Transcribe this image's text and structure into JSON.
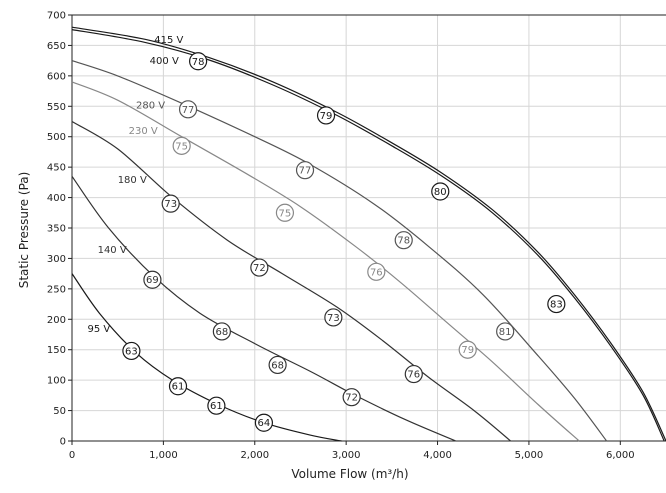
{
  "chart_data": {
    "type": "line",
    "title": "",
    "xlabel": "Volume Flow (m³/h)",
    "ylabel": "Static Pressure (Pa)",
    "xlim": [
      0,
      6500
    ],
    "ylim": [
      0,
      700
    ],
    "grid": true,
    "x_ticks": [
      "0",
      "1,000",
      "2,000",
      "3,000",
      "4,000",
      "5,000",
      "6,000"
    ],
    "y_ticks": [
      "0",
      "50",
      "100",
      "150",
      "200",
      "250",
      "300",
      "350",
      "400",
      "450",
      "500",
      "550",
      "600",
      "650",
      "700"
    ],
    "series": [
      {
        "name": "415 V",
        "color": "#1a1a1a",
        "x": [
          0,
          800,
          1500,
          2200,
          2900,
          3500,
          4050,
          4600,
          5100,
          5500,
          5900,
          6250,
          6500
        ],
        "y": [
          680,
          660,
          630,
          590,
          540,
          490,
          440,
          380,
          310,
          240,
          160,
          80,
          0
        ]
      },
      {
        "name": "400 V",
        "color": "#1a1a1a",
        "x": [
          0,
          800,
          1500,
          2200,
          2900,
          3500,
          4050,
          4600,
          5100,
          5500,
          5900,
          6250,
          6480
        ],
        "y": [
          676,
          655,
          626,
          585,
          535,
          485,
          435,
          375,
          305,
          235,
          155,
          75,
          0
        ]
      },
      {
        "name": "280 V",
        "color": "#555555",
        "x": [
          0,
          500,
          1200,
          2000,
          2600,
          3300,
          3900,
          4500,
          5100,
          5500,
          5850
        ],
        "y": [
          625,
          600,
          555,
          500,
          455,
          390,
          320,
          240,
          140,
          70,
          0
        ]
      },
      {
        "name": "230 V",
        "color": "#888888",
        "x": [
          0,
          500,
          1200,
          1900,
          2500,
          3100,
          3600,
          4100,
          4600,
          5100,
          5550
        ],
        "y": [
          590,
          560,
          500,
          440,
          385,
          320,
          260,
          195,
          130,
          60,
          0
        ]
      },
      {
        "name": "180 V",
        "color": "#333333",
        "x": [
          0,
          500,
          1100,
          1700,
          2300,
          2900,
          3400,
          3900,
          4400,
          4800
        ],
        "y": [
          525,
          480,
          400,
          330,
          275,
          220,
          165,
          105,
          50,
          0
        ]
      },
      {
        "name": "140 V",
        "color": "#333333",
        "x": [
          0,
          400,
          900,
          1400,
          2000,
          2600,
          3100,
          3650,
          4200
        ],
        "y": [
          435,
          350,
          270,
          210,
          160,
          115,
          75,
          35,
          0
        ]
      },
      {
        "name": "95 V",
        "color": "#1a1a1a",
        "x": [
          0,
          300,
          700,
          1100,
          1600,
          2100,
          2600,
          2950
        ],
        "y": [
          275,
          210,
          145,
          100,
          60,
          30,
          10,
          0
        ]
      }
    ],
    "curve_labels": [
      {
        "text": "415 V",
        "x": 900,
        "y": 660,
        "color": "#1a1a1a"
      },
      {
        "text": "400 V",
        "x": 850,
        "y": 625,
        "color": "#1a1a1a"
      },
      {
        "text": "280 V",
        "x": 700,
        "y": 552,
        "color": "#555555"
      },
      {
        "text": "230 V",
        "x": 620,
        "y": 510,
        "color": "#888888"
      },
      {
        "text": "180 V",
        "x": 500,
        "y": 430,
        "color": "#333333"
      },
      {
        "text": "140 V",
        "x": 280,
        "y": 315,
        "color": "#333333"
      },
      {
        "text": "95 V",
        "x": 170,
        "y": 185,
        "color": "#1a1a1a"
      }
    ],
    "badges": [
      {
        "text": "78",
        "x": 1380,
        "y": 624,
        "color": "#1a1a1a"
      },
      {
        "text": "79",
        "x": 2780,
        "y": 535,
        "color": "#1a1a1a"
      },
      {
        "text": "80",
        "x": 4030,
        "y": 410,
        "color": "#1a1a1a"
      },
      {
        "text": "83",
        "x": 5300,
        "y": 225,
        "color": "#1a1a1a"
      },
      {
        "text": "77",
        "x": 1270,
        "y": 545,
        "color": "#555555"
      },
      {
        "text": "77",
        "x": 2550,
        "y": 445,
        "color": "#555555"
      },
      {
        "text": "78",
        "x": 3630,
        "y": 330,
        "color": "#555555"
      },
      {
        "text": "81",
        "x": 4740,
        "y": 180,
        "color": "#555555"
      },
      {
        "text": "75",
        "x": 1200,
        "y": 485,
        "color": "#888888"
      },
      {
        "text": "75",
        "x": 2330,
        "y": 375,
        "color": "#888888"
      },
      {
        "text": "76",
        "x": 3330,
        "y": 278,
        "color": "#888888"
      },
      {
        "text": "79",
        "x": 4330,
        "y": 150,
        "color": "#888888"
      },
      {
        "text": "73",
        "x": 1080,
        "y": 390,
        "color": "#333333"
      },
      {
        "text": "72",
        "x": 2050,
        "y": 285,
        "color": "#333333"
      },
      {
        "text": "73",
        "x": 2860,
        "y": 203,
        "color": "#333333"
      },
      {
        "text": "76",
        "x": 3740,
        "y": 110,
        "color": "#333333"
      },
      {
        "text": "69",
        "x": 880,
        "y": 265,
        "color": "#333333"
      },
      {
        "text": "68",
        "x": 1640,
        "y": 180,
        "color": "#333333"
      },
      {
        "text": "68",
        "x": 2250,
        "y": 125,
        "color": "#333333"
      },
      {
        "text": "72",
        "x": 3060,
        "y": 72,
        "color": "#333333"
      },
      {
        "text": "63",
        "x": 650,
        "y": 148,
        "color": "#1a1a1a"
      },
      {
        "text": "61",
        "x": 1160,
        "y": 90,
        "color": "#1a1a1a"
      },
      {
        "text": "61",
        "x": 1580,
        "y": 58,
        "color": "#1a1a1a"
      },
      {
        "text": "64",
        "x": 2100,
        "y": 30,
        "color": "#1a1a1a"
      }
    ]
  }
}
